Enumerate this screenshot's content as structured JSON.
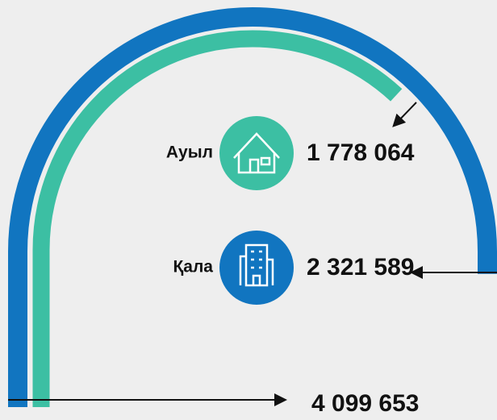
{
  "chart_data": {
    "type": "arc",
    "categories": [
      "Ауыл",
      "Қала"
    ],
    "values": [
      1778064,
      2321589
    ],
    "value_labels": [
      "1 778 064",
      "2 321 589"
    ],
    "colors": [
      "#3cbfa3",
      "#1175c0"
    ],
    "total": 4099653,
    "total_label": "4 099 653"
  }
}
